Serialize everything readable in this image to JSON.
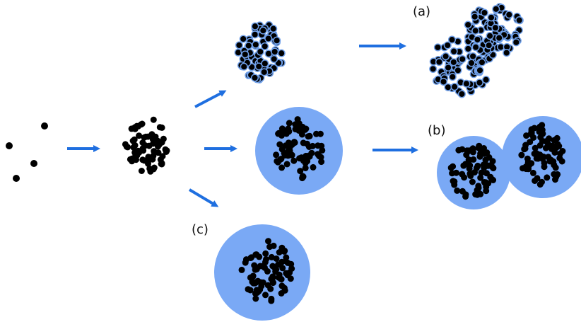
{
  "labels": {
    "a": "(a)",
    "b": "(b)",
    "c": "(c)"
  },
  "colors": {
    "particle": "#000000",
    "arrow": "#1f6fe0",
    "shell": "#7aa9f5",
    "outline": "#6f9fe8"
  }
}
